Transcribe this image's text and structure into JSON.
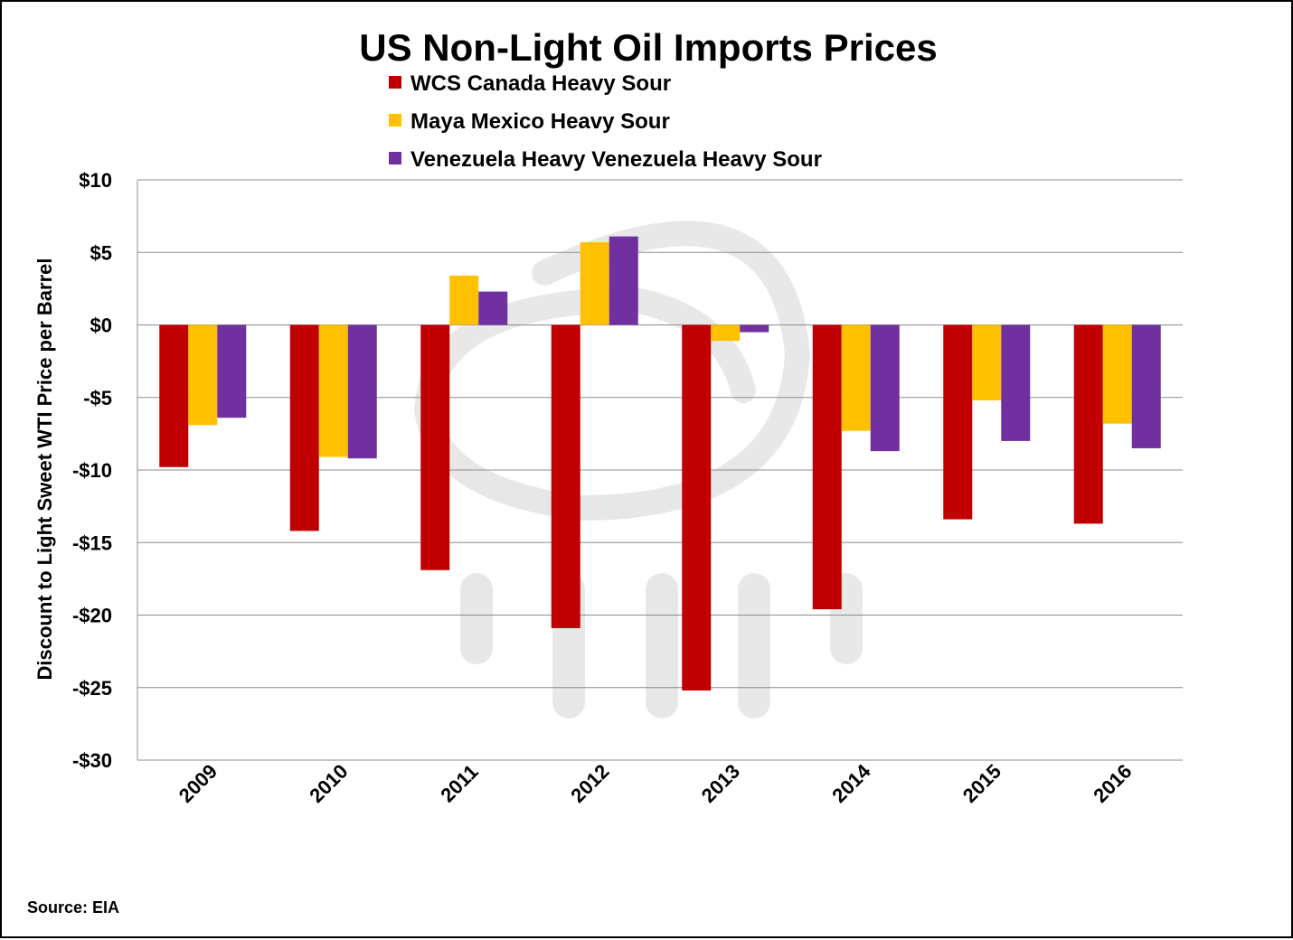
{
  "chart_data": {
    "type": "bar",
    "title": "US Non-Light Oil Imports Prices",
    "ylabel": "Discount to Light Sweet WTI Price per Barrel",
    "xlabel": "",
    "ylim": [
      -30,
      10
    ],
    "yticks": [
      10,
      5,
      0,
      -5,
      -10,
      -15,
      -20,
      -25,
      -30
    ],
    "ytick_labels": [
      "$10",
      "$5",
      "$0",
      "-$5",
      "-$10",
      "-$15",
      "-$20",
      "-$25",
      "-$30"
    ],
    "categories": [
      "2009",
      "2010",
      "2011",
      "2012",
      "2013",
      "2014",
      "2015",
      "2016"
    ],
    "series": [
      {
        "name": "WCS Canada Heavy Sour",
        "color": "#C00000",
        "values": [
          -9.8,
          -14.2,
          -16.9,
          -20.9,
          -25.2,
          -19.6,
          -13.4,
          -13.7
        ]
      },
      {
        "name": "Maya Mexico Heavy Sour",
        "color": "#FFC000",
        "values": [
          -6.9,
          -9.1,
          3.4,
          5.7,
          -1.1,
          -7.3,
          -5.2,
          -6.8
        ]
      },
      {
        "name": "Venezuela Heavy Venezuela Heavy Sour",
        "color": "#7030A0",
        "values": [
          -6.4,
          -9.2,
          2.3,
          6.1,
          -0.5,
          -8.7,
          -8.0,
          -8.5
        ]
      }
    ],
    "grid": true,
    "legend_position": "top-center",
    "source": "Source: EIA"
  }
}
